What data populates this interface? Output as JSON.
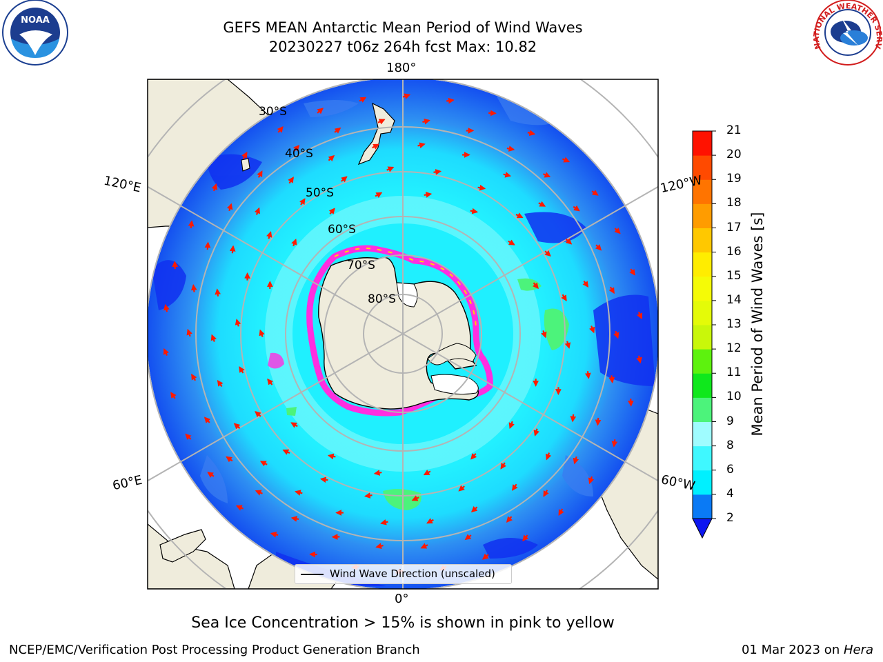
{
  "header": {
    "title_line1": "GEFS MEAN Antarctic Mean Period of Wind Waves",
    "title_line2": "20230227 t06z 264h fcst   Max: 10.82"
  },
  "logos": {
    "noaa_text": "NOAA",
    "noaa_ring_text": "NATIONAL OCEANIC AND ATMOSPHERIC ADMINISTRATION · U.S. DEPARTMENT OF COMMERCE",
    "nws_ring_text": "NATIONAL WEATHER SERVICE"
  },
  "map": {
    "longitude_labels": [
      "180°",
      "120°E",
      "120°W",
      "60°E",
      "60°W",
      "0°"
    ],
    "latitude_labels": [
      "30°S",
      "40°S",
      "50°S",
      "60°S",
      "70°S",
      "80°S"
    ],
    "legend_label": "Wind Wave Direction (unscaled)",
    "colors": {
      "ocean_deep": "#0a20f5",
      "ocean_mid": "#3b78f0",
      "ocean_light": "#1bf0ff",
      "ocean_pale": "#7df9fc",
      "land": "#efecdc",
      "arrow": "#ff1a00",
      "ice_edge": "#ff2ee0",
      "grid": "#b4b4b4"
    }
  },
  "colorbar": {
    "label": "Mean Period of Wind Waves [s]",
    "ticks": [
      "21",
      "20",
      "19",
      "18",
      "17",
      "16",
      "15",
      "14",
      "13",
      "12",
      "11",
      "10",
      "9",
      "8",
      "6",
      "4",
      "2"
    ],
    "bins": [
      {
        "from": 2,
        "to": 4,
        "color": "#0a7af5"
      },
      {
        "from": 4,
        "to": 6,
        "color": "#00f0ff"
      },
      {
        "from": 6,
        "to": 8,
        "color": "#3ff8ff"
      },
      {
        "from": 8,
        "to": 9,
        "color": "#9ffcff"
      },
      {
        "from": 9,
        "to": 10,
        "color": "#4cf37b"
      },
      {
        "from": 10,
        "to": 11,
        "color": "#0fe81c"
      },
      {
        "from": 11,
        "to": 12,
        "color": "#5df20e"
      },
      {
        "from": 12,
        "to": 13,
        "color": "#c9f70a"
      },
      {
        "from": 13,
        "to": 14,
        "color": "#e4fb08"
      },
      {
        "from": 14,
        "to": 15,
        "color": "#f5fb06"
      },
      {
        "from": 15,
        "to": 16,
        "color": "#ffed00"
      },
      {
        "from": 16,
        "to": 17,
        "color": "#ffc800"
      },
      {
        "from": 17,
        "to": 18,
        "color": "#ff9c00"
      },
      {
        "from": 18,
        "to": 19,
        "color": "#ff7400"
      },
      {
        "from": 19,
        "to": 20,
        "color": "#ff4a00"
      },
      {
        "from": 20,
        "to": 21,
        "color": "#ff1200"
      }
    ],
    "under_color": "#0c16f0"
  },
  "footer": {
    "ice_note": "Sea Ice Concentration > 15% is shown in pink to yellow",
    "credit": "NCEP/EMC/Verification Post Processing Product Generation Branch",
    "date_prefix": "01 Mar 2023 on ",
    "date_machine": "Hera"
  }
}
